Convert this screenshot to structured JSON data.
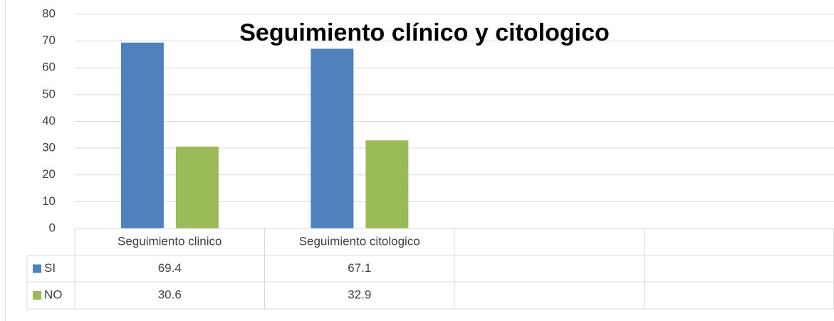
{
  "chart_data": {
    "type": "bar",
    "title": "Seguimiento clínico y citologico",
    "categories": [
      "Seguimiento clinico",
      "Seguimiento citologico",
      null,
      null
    ],
    "series": [
      {
        "name": "SI",
        "color": "#4f81bd",
        "values": [
          69.4,
          67.1,
          null,
          null
        ]
      },
      {
        "name": "NO",
        "color": "#9bbb59",
        "values": [
          30.6,
          32.9,
          null,
          null
        ]
      }
    ],
    "ylim": [
      0,
      80
    ],
    "yticks": [
      0,
      10,
      20,
      30,
      40,
      50,
      60,
      70,
      80
    ],
    "grid": true,
    "data_table": true
  }
}
